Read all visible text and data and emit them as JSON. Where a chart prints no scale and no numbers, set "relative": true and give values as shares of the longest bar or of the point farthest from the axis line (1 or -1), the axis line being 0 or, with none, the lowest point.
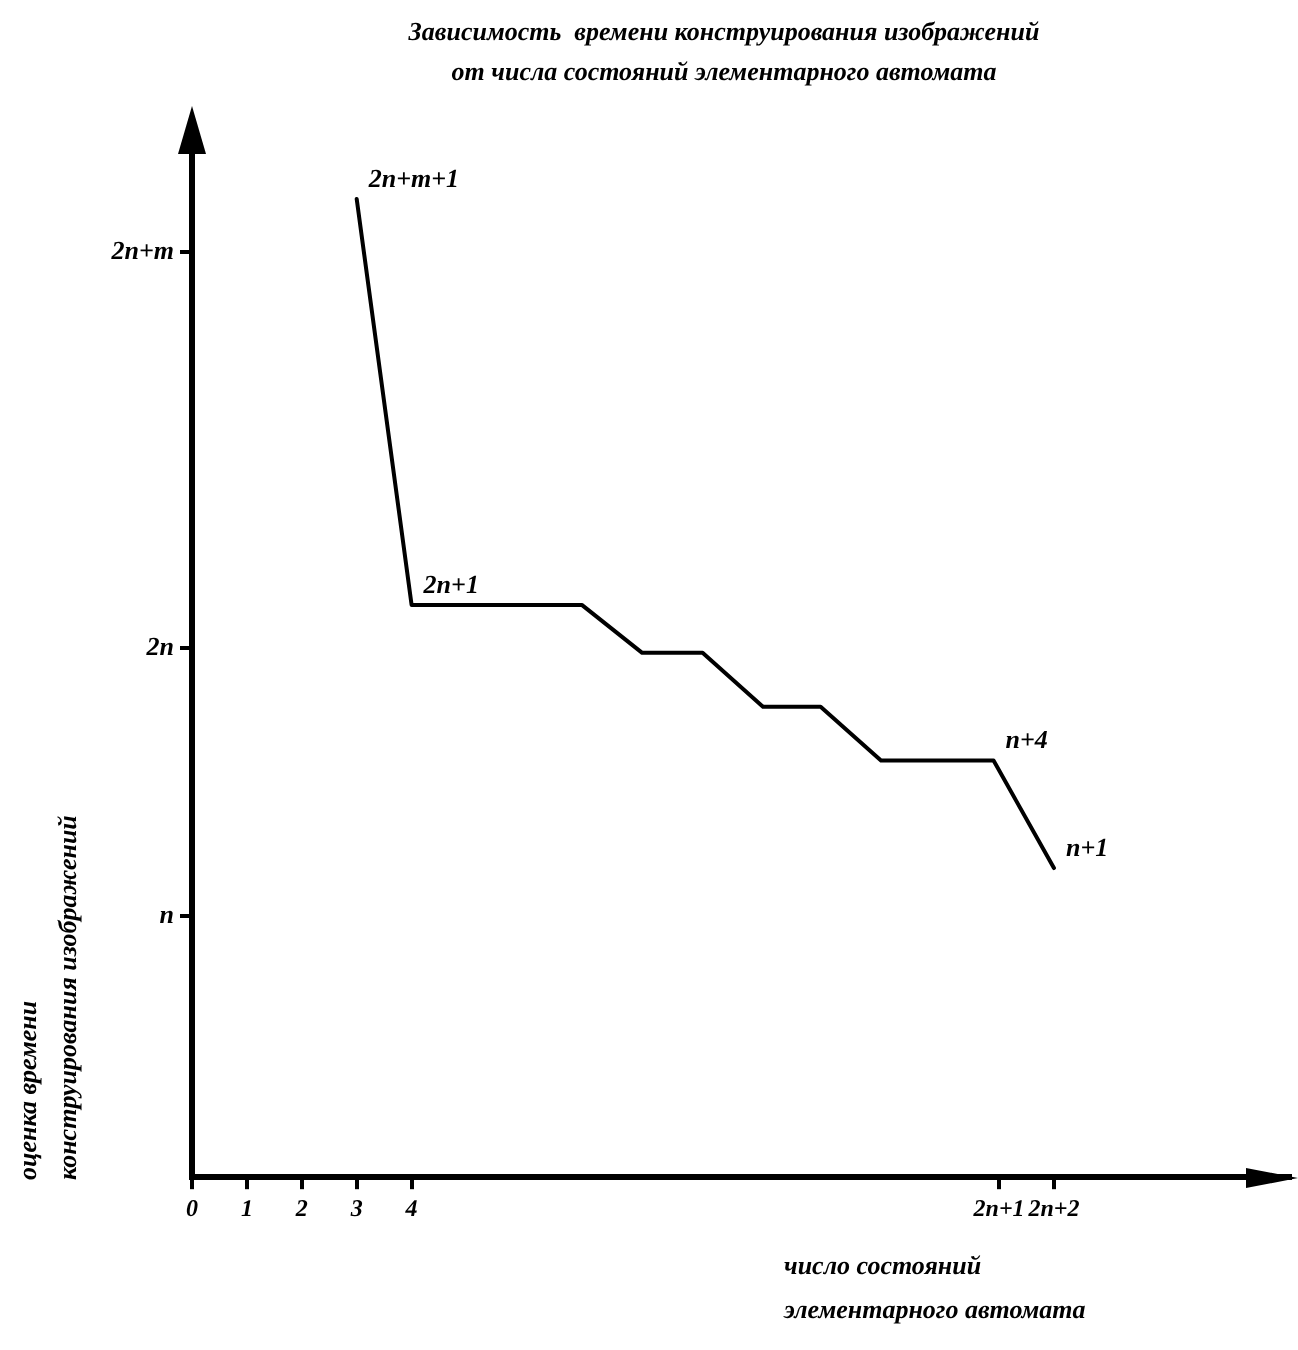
{
  "chart_data": {
    "type": "line",
    "title": "Зависимость  времени конструирования изображений\nот числа состояний элементарного автомата",
    "xlabel": "число состояний\nэлементарного автомата",
    "ylabel": "оценка времени\nконструирования изображений",
    "x": [
      3,
      4,
      7.1,
      8.2,
      9.3,
      10.4,
      11.45,
      12.55,
      14.6,
      15.7
    ],
    "series": [
      {
        "color": "#000000",
        "values": [
          1,
          0.585,
          0.585,
          0.536,
          0.536,
          0.481,
          0.481,
          0.426,
          0.426,
          0.316
        ]
      }
    ],
    "relative": true,
    "xlim": [
      0,
      20
    ],
    "xticks": [
      0,
      1,
      2,
      3,
      4,
      {
        "value": 14.7,
        "label": "2n+1"
      },
      {
        "value": 15.7,
        "label": "2n+2"
      }
    ],
    "annotations": [
      "n",
      "2n",
      "2n+m",
      {
        "text": "2n+m+1",
        "x": 3,
        "y": 1
      },
      {
        "text": "2n+1",
        "x": 4,
        "y": 0.585
      },
      {
        "text": "n+4",
        "x": 14.6,
        "y": 0.426
      },
      {
        "text": "n+1",
        "x": 15.7,
        "y": 0.316
      }
    ],
    "grid": false,
    "legend": false,
    "marker": "none",
    "line_style": "solid"
  }
}
